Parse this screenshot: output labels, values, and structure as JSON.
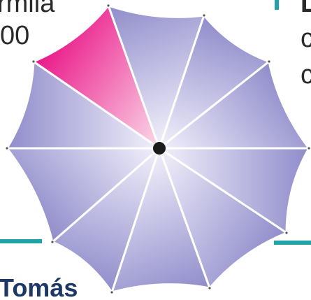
{
  "fragments": {
    "top_left_line1": "rmila",
    "top_left_line2": "00",
    "top_right_line1": "L",
    "top_right_line2": "c",
    "top_right_line3": "c",
    "bottom_left": "Tomás"
  },
  "colors": {
    "canopy_panel": "#8f8ccb",
    "canopy_panel_light": "#f3f1fb",
    "highlight_panel": "#ea1788",
    "highlight_panel_light": "#fbd9e9",
    "accent_line": "#1fa3a8",
    "hub": "#1c1c1c"
  },
  "umbrella": {
    "panel_count": 12,
    "highlighted_panel_index": 1
  }
}
